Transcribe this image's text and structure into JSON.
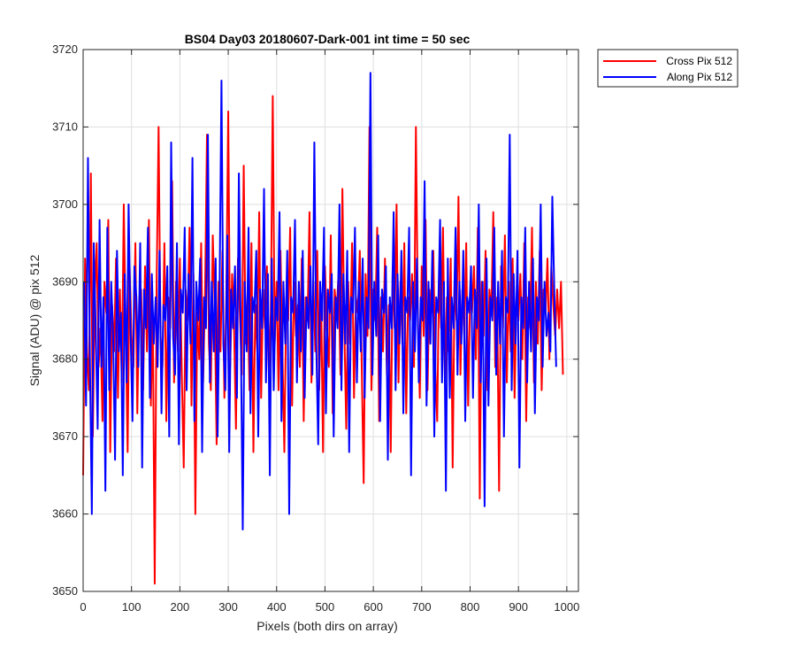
{
  "chart_data": {
    "type": "line",
    "title": "BS04 Day03 20180607-Dark-001 int time = 50 sec",
    "xlabel": "Pixels (both dirs on array)",
    "ylabel": "Signal (ADU) @ pix 512",
    "xlim": [
      0,
      1024
    ],
    "ylim": [
      3650,
      3720
    ],
    "xticks": [
      0,
      100,
      200,
      300,
      400,
      500,
      600,
      700,
      800,
      900,
      1000
    ],
    "yticks": [
      3650,
      3660,
      3670,
      3680,
      3690,
      3700,
      3710,
      3720
    ],
    "grid": true,
    "legend_position": "outside-top-right",
    "series": [
      {
        "name": "Cross Pix 512",
        "color": "#ff0000",
        "x_start": 0,
        "x_step": 4,
        "values": [
          3665,
          3693,
          3681,
          3676,
          3704,
          3670,
          3688,
          3695,
          3679,
          3684,
          3672,
          3690,
          3686,
          3698,
          3668,
          3687,
          3681,
          3693,
          3675,
          3689,
          3677,
          3700,
          3684,
          3668,
          3692,
          3683,
          3679,
          3695,
          3673,
          3688,
          3689,
          3676,
          3692,
          3681,
          3698,
          3674,
          3686,
          3651,
          3690,
          3710,
          3683,
          3679,
          3695,
          3672,
          3688,
          3684,
          3703,
          3677,
          3690,
          3681,
          3693,
          3678,
          3666,
          3689,
          3685,
          3697,
          3674,
          3691,
          3660,
          3686,
          3680,
          3695,
          3677,
          3688,
          3709,
          3682,
          3676,
          3696,
          3687,
          3669,
          3690,
          3681,
          3694,
          3675,
          3688,
          3712,
          3679,
          3691,
          3684,
          3671,
          3693,
          3686,
          3678,
          3705,
          3682,
          3688,
          3676,
          3695,
          3668,
          3687,
          3681,
          3699,
          3675,
          3689,
          3684,
          3692,
          3678,
          3686,
          3714,
          3682,
          3690,
          3676,
          3694,
          3681,
          3668,
          3688,
          3685,
          3697,
          3674,
          3690,
          3683,
          3687,
          3679,
          3693,
          3672,
          3688,
          3685,
          3699,
          3677,
          3690,
          3681,
          3694,
          3676,
          3688,
          3668,
          3692,
          3684,
          3679,
          3696,
          3673,
          3689,
          3686,
          3691,
          3678,
          3702,
          3684,
          3671,
          3690,
          3682,
          3695,
          3675,
          3688,
          3686,
          3694,
          3679,
          3664,
          3691,
          3683,
          3710,
          3676,
          3689,
          3685,
          3697,
          3672,
          3688,
          3681,
          3693,
          3678,
          3687,
          3668,
          3692,
          3684,
          3700,
          3677,
          3690,
          3682,
          3695,
          3673,
          3688,
          3685,
          3691,
          3679,
          3710,
          3686,
          3675,
          3692,
          3683,
          3698,
          3676,
          3689,
          3686,
          3694,
          3679,
          3672,
          3691,
          3684,
          3697,
          3677,
          3688,
          3681,
          3693,
          3666,
          3690,
          3685,
          3701,
          3678,
          3689,
          3683,
          3695,
          3674,
          3688,
          3686,
          3692,
          3680,
          3697,
          3662,
          3690,
          3683,
          3694,
          3676,
          3689,
          3686,
          3699,
          3679,
          3688,
          3663,
          3692,
          3684,
          3696,
          3677,
          3690,
          3681,
          3693,
          3675,
          3688,
          3685,
          3691,
          3680,
          3695,
          3672,
          3688,
          3684,
          3697,
          3677,
          3690,
          3682,
          3694,
          3676,
          3689,
          3686,
          3693,
          3680,
          3692,
          3687,
          3683,
          3689,
          3684,
          3690,
          3678
        ]
      },
      {
        "name": "Along Pix 512",
        "color": "#0000ff",
        "x_start": 2,
        "x_step": 4,
        "values": [
          3690,
          3674,
          3706,
          3680,
          3660,
          3695,
          3684,
          3671,
          3698,
          3679,
          3688,
          3663,
          3697,
          3676,
          3690,
          3683,
          3667,
          3694,
          3681,
          3686,
          3665,
          3691,
          3677,
          3700,
          3684,
          3672,
          3692,
          3688,
          3679,
          3695,
          3666,
          3689,
          3684,
          3697,
          3675,
          3691,
          3682,
          3688,
          3679,
          3694,
          3673,
          3687,
          3685,
          3692,
          3670,
          3708,
          3683,
          3678,
          3695,
          3669,
          3689,
          3686,
          3697,
          3676,
          3691,
          3682,
          3706,
          3672,
          3690,
          3685,
          3693,
          3668,
          3688,
          3684,
          3709,
          3677,
          3690,
          3681,
          3693,
          3670,
          3688,
          3716,
          3682,
          3676,
          3696,
          3668,
          3689,
          3684,
          3692,
          3675,
          3704,
          3683,
          3658,
          3690,
          3681,
          3697,
          3673,
          3688,
          3686,
          3694,
          3670,
          3689,
          3684,
          3702,
          3677,
          3691,
          3665,
          3693,
          3676,
          3688,
          3685,
          3699,
          3672,
          3690,
          3682,
          3694,
          3660,
          3688,
          3686,
          3698,
          3677,
          3690,
          3681,
          3694,
          3675,
          3688,
          3684,
          3692,
          3678,
          3708,
          3682,
          3669,
          3690,
          3685,
          3697,
          3673,
          3689,
          3686,
          3691,
          3670,
          3688,
          3684,
          3700,
          3676,
          3691,
          3682,
          3694,
          3668,
          3688,
          3686,
          3697,
          3677,
          3690,
          3681,
          3693,
          3675,
          3688,
          3684,
          3717,
          3678,
          3690,
          3683,
          3696,
          3672,
          3689,
          3686,
          3692,
          3667,
          3688,
          3684,
          3699,
          3676,
          3691,
          3682,
          3694,
          3673,
          3688,
          3686,
          3697,
          3665,
          3690,
          3681,
          3693,
          3677,
          3688,
          3685,
          3703,
          3674,
          3690,
          3682,
          3694,
          3670,
          3688,
          3686,
          3698,
          3677,
          3690,
          3663,
          3693,
          3675,
          3688,
          3684,
          3697,
          3678,
          3690,
          3682,
          3694,
          3672,
          3688,
          3686,
          3692,
          3675,
          3689,
          3684,
          3700,
          3677,
          3690,
          3661,
          3693,
          3674,
          3688,
          3685,
          3697,
          3678,
          3690,
          3682,
          3694,
          3670,
          3688,
          3686,
          3709,
          3676,
          3691,
          3682,
          3694,
          3666,
          3688,
          3684,
          3697,
          3677,
          3690,
          3681,
          3693,
          3673,
          3688,
          3685,
          3700,
          3679,
          3690,
          3683,
          3686,
          3681,
          3701,
          3689,
          3679
        ]
      }
    ]
  }
}
